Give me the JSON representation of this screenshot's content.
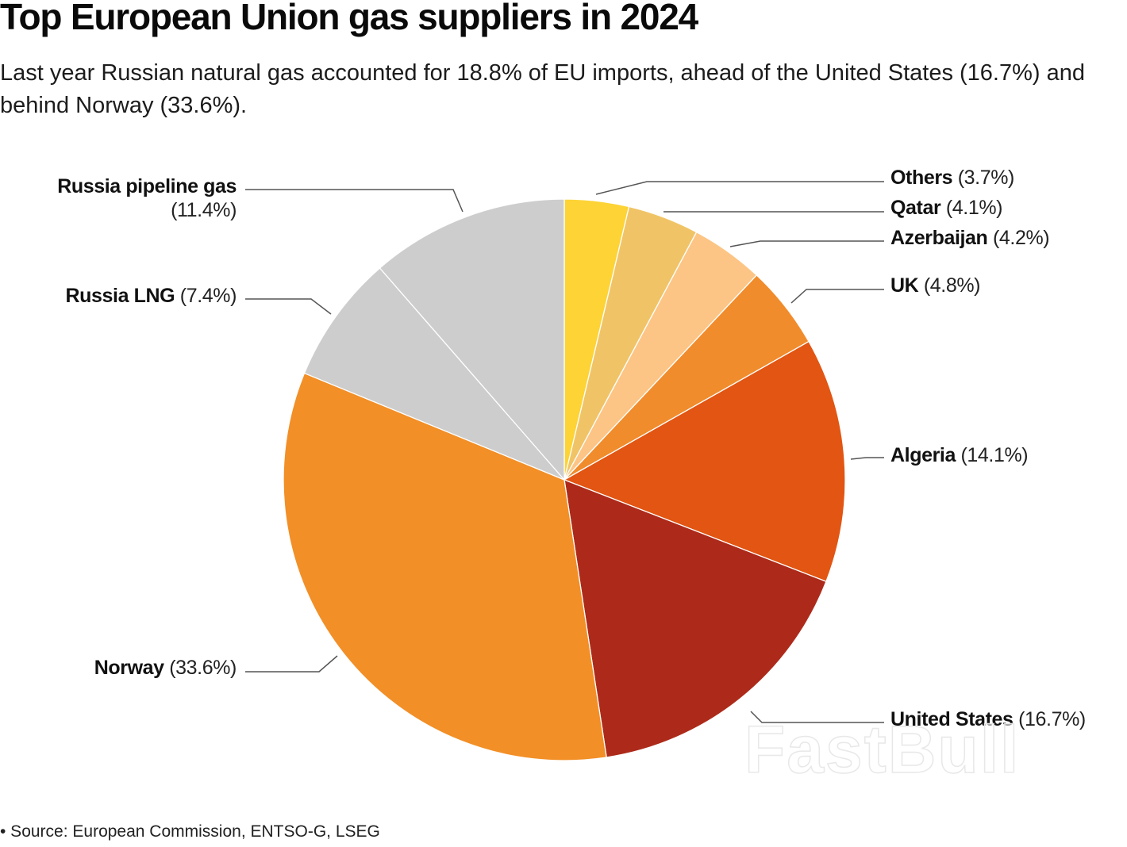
{
  "title": "Top European Union gas suppliers in 2024",
  "subtitle": "Last year Russian natural gas accounted for 18.8% of EU imports, ahead of the United States (16.7%) and behind Norway (33.6%).",
  "source": "• Source: European Commission, ENTSO-G, LSEG",
  "watermark": "FastBull",
  "chart_data": {
    "type": "pie",
    "title": "Top European Union gas suppliers in 2024",
    "legend": "none",
    "start": "12 o'clock, clockwise",
    "slices": [
      {
        "name": "Others",
        "value": 3.7,
        "pct_label": "(3.7%)",
        "color": "#fdd335"
      },
      {
        "name": "Qatar",
        "value": 4.1,
        "pct_label": "(4.1%)",
        "color": "#f0c466"
      },
      {
        "name": "Azerbaijan",
        "value": 4.2,
        "pct_label": "(4.2%)",
        "color": "#fcc585"
      },
      {
        "name": "UK",
        "value": 4.8,
        "pct_label": "(4.8%)",
        "color": "#f18c2c"
      },
      {
        "name": "Algeria",
        "value": 14.1,
        "pct_label": "(14.1%)",
        "color": "#e25512"
      },
      {
        "name": "United States",
        "value": 16.7,
        "pct_label": "(16.7%)",
        "color": "#ad2a1a"
      },
      {
        "name": "Norway",
        "value": 33.6,
        "pct_label": "(33.6%)",
        "color": "#f28f27"
      },
      {
        "name": "Russia LNG",
        "value": 7.4,
        "pct_label": "(7.4%)",
        "color": "#cdcdcd"
      },
      {
        "name": "Russia pipeline gas",
        "value": 11.4,
        "pct_label": "(11.4%)",
        "color": "#cdcdcd"
      }
    ]
  }
}
